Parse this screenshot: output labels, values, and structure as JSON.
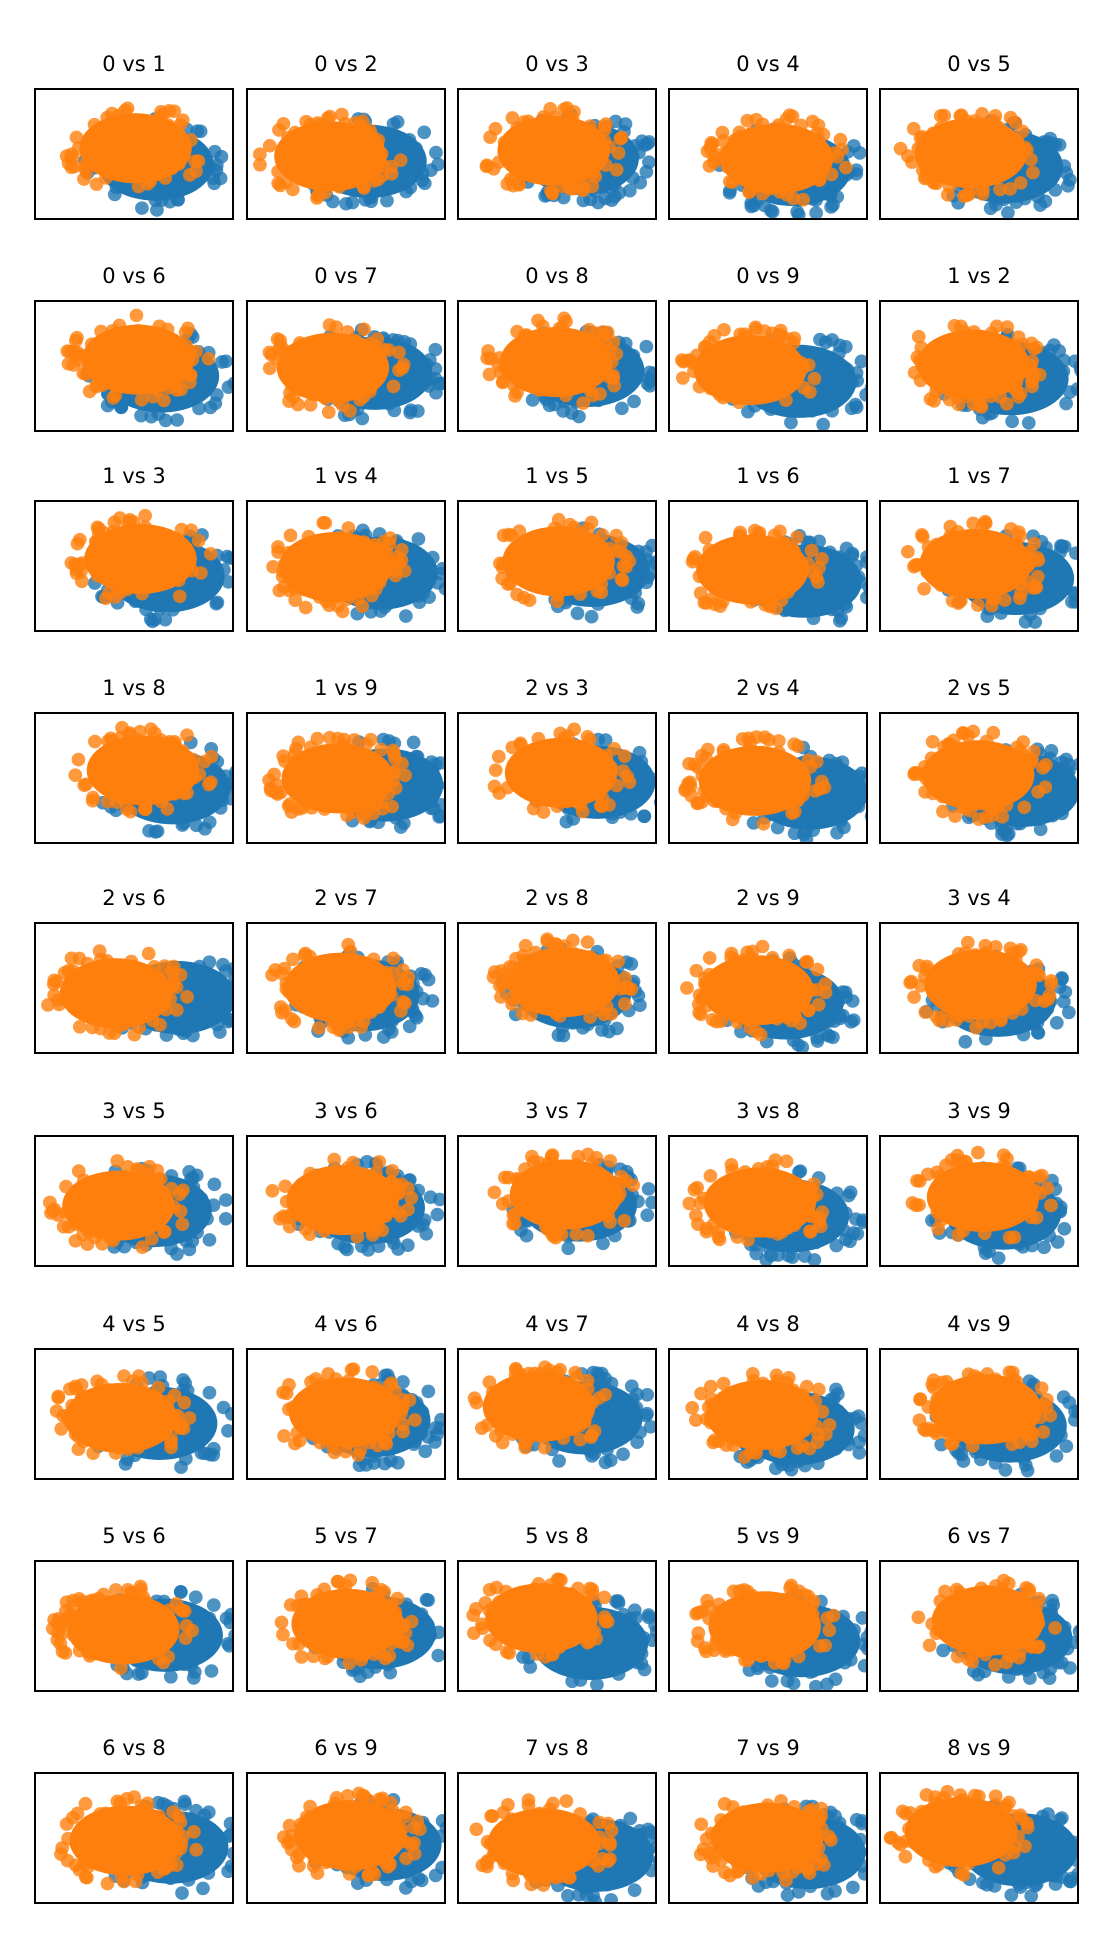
{
  "colors": {
    "series_a": "#1f77b4",
    "series_b": "#ff7f0e"
  },
  "chart_data": [
    {
      "type": "scatter",
      "title": "0 vs 1"
    },
    {
      "type": "scatter",
      "title": "0 vs 2"
    },
    {
      "type": "scatter",
      "title": "0 vs 3"
    },
    {
      "type": "scatter",
      "title": "0 vs 4"
    },
    {
      "type": "scatter",
      "title": "0 vs 5"
    },
    {
      "type": "scatter",
      "title": "0 vs 6"
    },
    {
      "type": "scatter",
      "title": "0 vs 7"
    },
    {
      "type": "scatter",
      "title": "0 vs 8"
    },
    {
      "type": "scatter",
      "title": "0 vs 9"
    },
    {
      "type": "scatter",
      "title": "1 vs 2"
    },
    {
      "type": "scatter",
      "title": "1 vs 3"
    },
    {
      "type": "scatter",
      "title": "1 vs 4"
    },
    {
      "type": "scatter",
      "title": "1 vs 5"
    },
    {
      "type": "scatter",
      "title": "1 vs 6"
    },
    {
      "type": "scatter",
      "title": "1 vs 7"
    },
    {
      "type": "scatter",
      "title": "1 vs 8"
    },
    {
      "type": "scatter",
      "title": "1 vs 9"
    },
    {
      "type": "scatter",
      "title": "2 vs 3"
    },
    {
      "type": "scatter",
      "title": "2 vs 4"
    },
    {
      "type": "scatter",
      "title": "2 vs 5"
    },
    {
      "type": "scatter",
      "title": "2 vs 6"
    },
    {
      "type": "scatter",
      "title": "2 vs 7"
    },
    {
      "type": "scatter",
      "title": "2 vs 8"
    },
    {
      "type": "scatter",
      "title": "2 vs 9"
    },
    {
      "type": "scatter",
      "title": "3 vs 4"
    },
    {
      "type": "scatter",
      "title": "3 vs 5"
    },
    {
      "type": "scatter",
      "title": "3 vs 6"
    },
    {
      "type": "scatter",
      "title": "3 vs 7"
    },
    {
      "type": "scatter",
      "title": "3 vs 8"
    },
    {
      "type": "scatter",
      "title": "3 vs 9"
    },
    {
      "type": "scatter",
      "title": "4 vs 5"
    },
    {
      "type": "scatter",
      "title": "4 vs 6"
    },
    {
      "type": "scatter",
      "title": "4 vs 7"
    },
    {
      "type": "scatter",
      "title": "4 vs 8"
    },
    {
      "type": "scatter",
      "title": "4 vs 9"
    },
    {
      "type": "scatter",
      "title": "5 vs 6"
    },
    {
      "type": "scatter",
      "title": "5 vs 7"
    },
    {
      "type": "scatter",
      "title": "5 vs 8"
    },
    {
      "type": "scatter",
      "title": "5 vs 9"
    },
    {
      "type": "scatter",
      "title": "6 vs 7"
    },
    {
      "type": "scatter",
      "title": "6 vs 8"
    },
    {
      "type": "scatter",
      "title": "6 vs 9"
    },
    {
      "type": "scatter",
      "title": "7 vs 8"
    },
    {
      "type": "scatter",
      "title": "7 vs 9"
    },
    {
      "type": "scatter",
      "title": "8 vs 9"
    }
  ]
}
